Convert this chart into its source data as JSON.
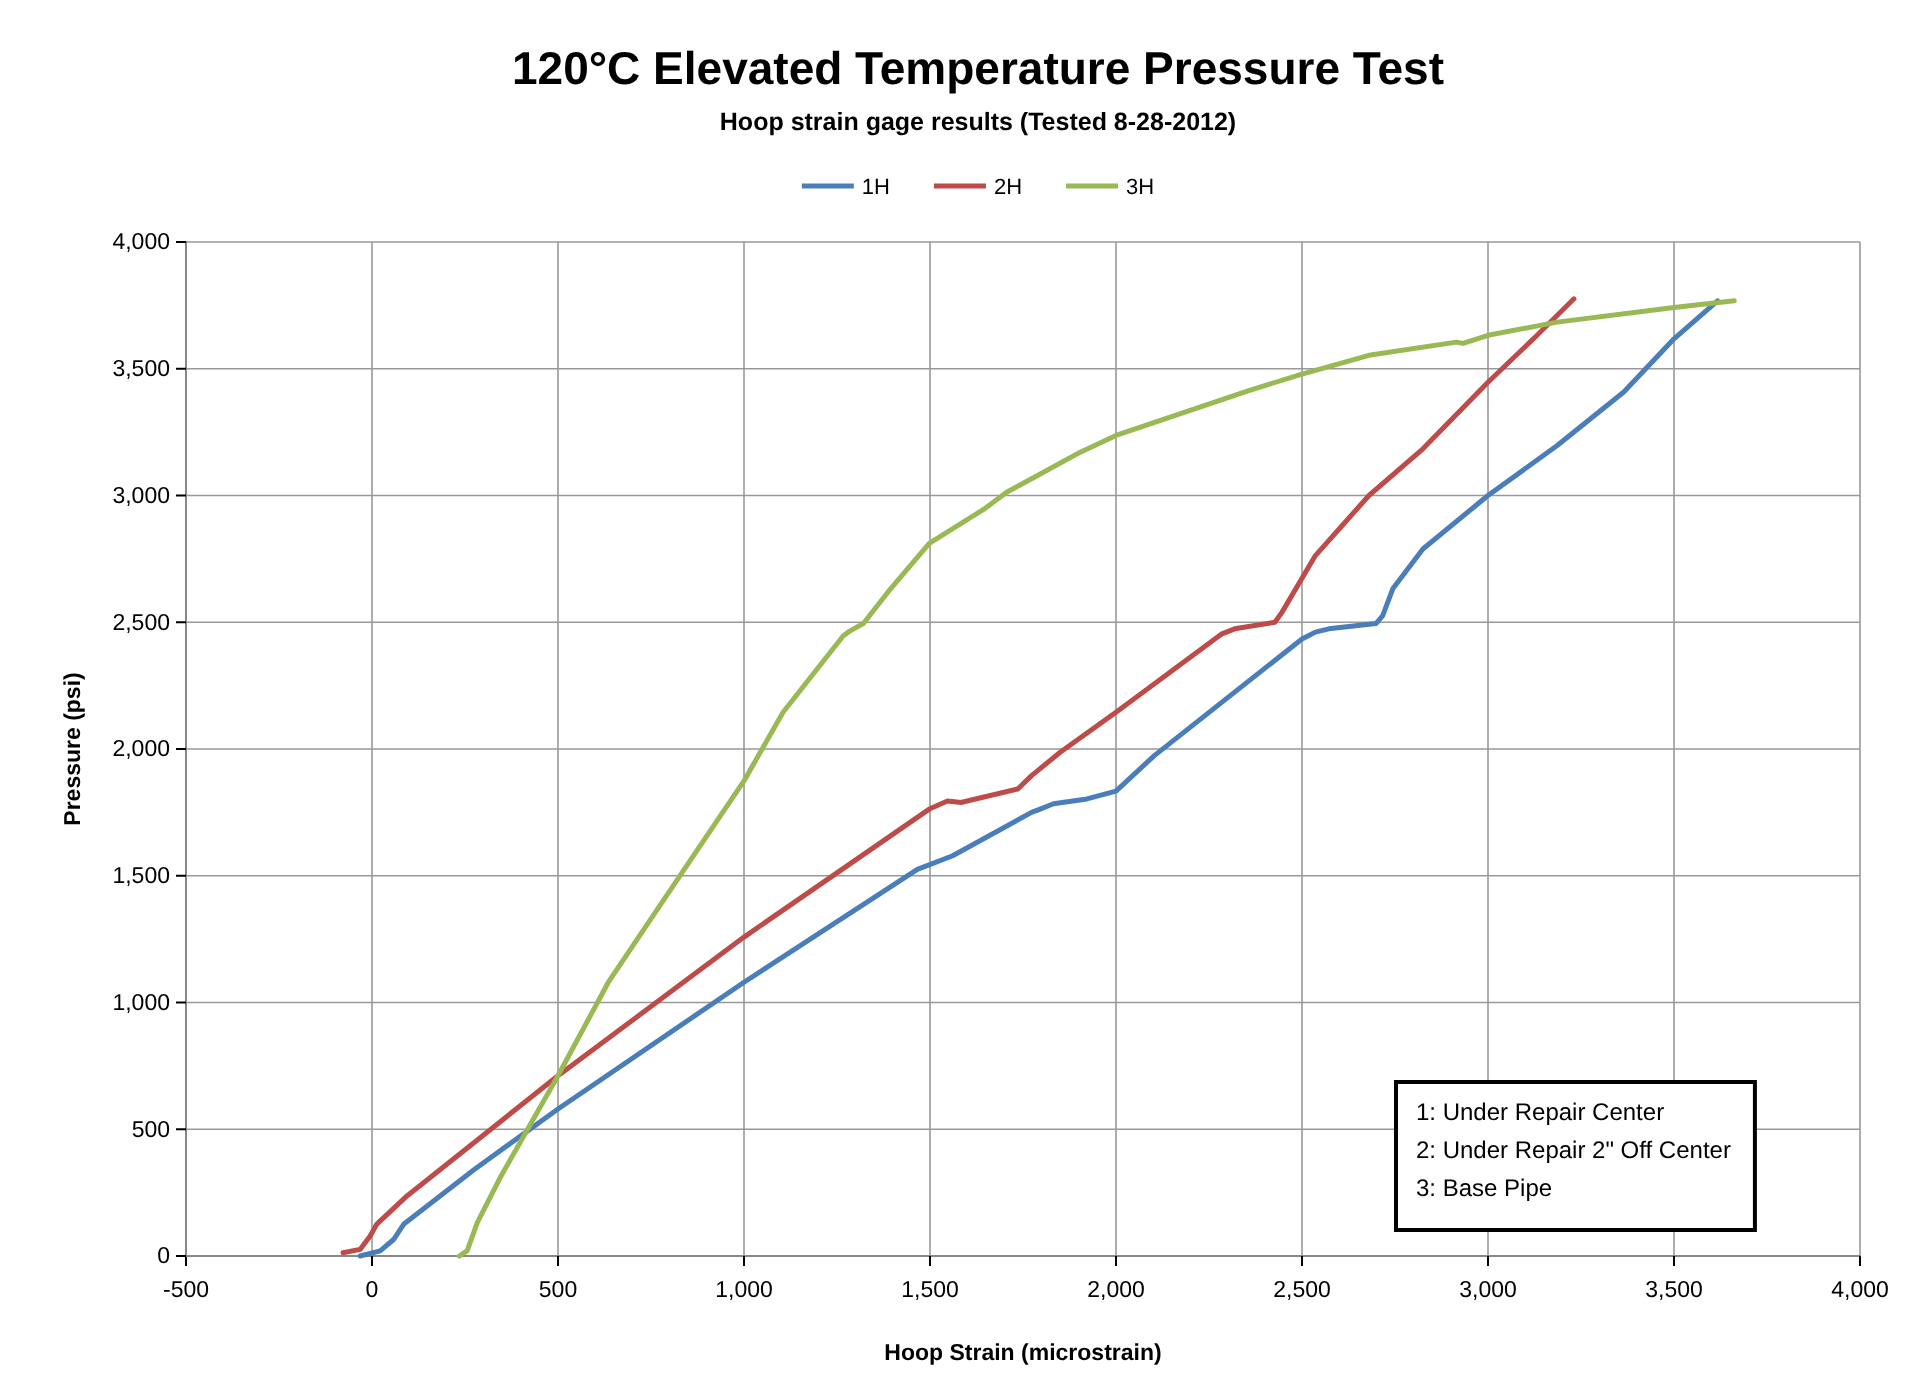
{
  "chart_data": {
    "type": "line",
    "title": "120°C Elevated Temperature Pressure Test",
    "subtitle": "Hoop strain gage results (Tested 8-28-2012)",
    "xlabel": "Hoop Strain (microstrain)",
    "ylabel": "Pressure (psi)",
    "xlim": [
      -500,
      4000
    ],
    "xticks": [
      {
        "value": -500,
        "label": "-500"
      },
      {
        "value": 0,
        "label": "0"
      },
      {
        "value": 500,
        "label": "500"
      },
      {
        "value": 1000,
        "label": "1,000"
      },
      {
        "value": 1500,
        "label": "1,500"
      },
      {
        "value": 2000,
        "label": "2,000"
      },
      {
        "value": 2500,
        "label": "2,500"
      },
      {
        "value": 3000,
        "label": "3,000"
      },
      {
        "value": 3500,
        "label": "3,500"
      },
      {
        "value": 4000,
        "label": "4,000"
      }
    ],
    "ylim": [
      0,
      4000
    ],
    "yticks": [
      {
        "value": 0,
        "label": "0"
      },
      {
        "value": 500,
        "label": "500"
      },
      {
        "value": 1000,
        "label": "1,000"
      },
      {
        "value": 1500,
        "label": "1,500"
      },
      {
        "value": 2000,
        "label": "2,000"
      },
      {
        "value": 2500,
        "label": "2,500"
      },
      {
        "value": 3000,
        "label": "3,000"
      },
      {
        "value": 3500,
        "label": "3,500"
      },
      {
        "value": 4000,
        "label": "4,000"
      }
    ],
    "grid": true,
    "legend": "top",
    "marker": "none",
    "line_style": "solid",
    "annotations": [
      "1: Under Repair Center",
      "2: Under Repair 2\" Off Center",
      "3: Base Pipe"
    ],
    "series": [
      {
        "name": "1H",
        "color": "#4a7ebb",
        "x": [
          -32,
          22,
          58,
          85,
          274,
          500,
          1000,
          1466,
          1561,
          1773,
          1796,
          1832,
          1922,
          2000,
          2103,
          2500,
          2536,
          2572,
          2699,
          2717,
          2744,
          2825,
          3000,
          3186,
          3365,
          3500,
          3617
        ],
        "values": [
          0,
          20,
          65,
          125,
          340,
          580,
          1080,
          1525,
          1579,
          1750,
          1763,
          1784,
          1803,
          1834,
          1974,
          2434,
          2461,
          2474,
          2495,
          2526,
          2632,
          2789,
          3000,
          3197,
          3408,
          3618,
          3768
        ]
      },
      {
        "name": "2H",
        "color": "#be4b48",
        "x": [
          -78,
          -32,
          -5,
          13,
          94,
          500,
          1000,
          1498,
          1547,
          1583,
          1736,
          1773,
          1850,
          2000,
          2283,
          2319,
          2427,
          2446,
          2536,
          2680,
          2825,
          3000,
          3132,
          3231
        ],
        "values": [
          13,
          26,
          79,
          126,
          237,
          711,
          1258,
          1763,
          1795,
          1789,
          1842,
          1895,
          1987,
          2145,
          2453,
          2474,
          2500,
          2539,
          2763,
          3000,
          3184,
          3447,
          3632,
          3776
        ]
      },
      {
        "name": "3H",
        "color": "#98b954",
        "x": [
          235,
          256,
          283,
          347,
          500,
          635,
          852,
          1000,
          1105,
          1267,
          1285,
          1321,
          1394,
          1498,
          1646,
          1706,
          1773,
          1904,
          2000,
          2355,
          2500,
          2680,
          2915,
          2933,
          3000,
          3186,
          3500,
          3662
        ],
        "values": [
          0,
          21,
          132,
          316,
          711,
          1079,
          1553,
          1874,
          2145,
          2447,
          2466,
          2495,
          2632,
          2811,
          2947,
          3013,
          3066,
          3171,
          3237,
          3413,
          3479,
          3553,
          3605,
          3600,
          3632,
          3684,
          3742,
          3768
        ]
      }
    ]
  }
}
